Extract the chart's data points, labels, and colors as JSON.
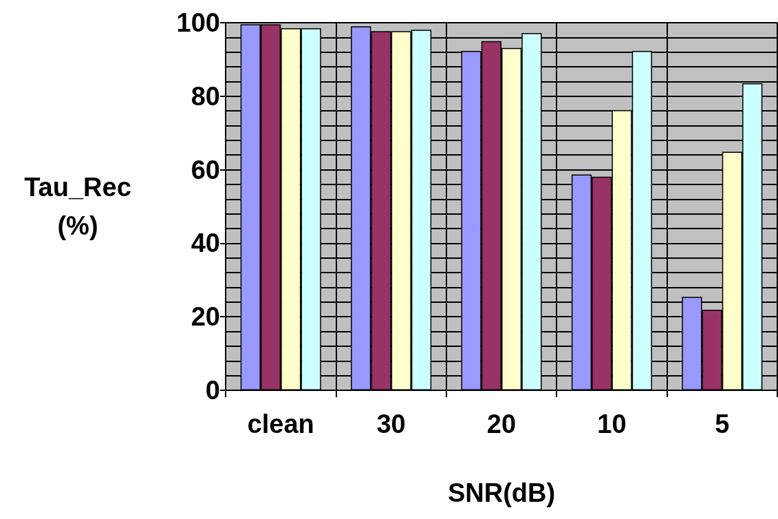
{
  "chart_data": {
    "type": "bar",
    "xlabel": "SNR(dB)",
    "ylabel": "Tau_Rec (%)",
    "categories": [
      "clean",
      "30",
      "20",
      "10",
      "5"
    ],
    "series": [
      {
        "color": "#9999ff",
        "values": [
          99.6,
          99,
          92.3,
          58.7,
          25.4
        ]
      },
      {
        "color": "#993366",
        "values": [
          99.6,
          97.7,
          95,
          58.1,
          21.9
        ]
      },
      {
        "color": "#ffffcc",
        "values": [
          98.5,
          97.7,
          93.1,
          76.2,
          64.9
        ]
      },
      {
        "color": "#ccffff",
        "values": [
          98.5,
          98.1,
          97.2,
          92.3,
          83.5
        ]
      }
    ],
    "ylim": [
      0,
      100
    ],
    "yticks": [
      0,
      20,
      40,
      60,
      80,
      100
    ],
    "grid": true
  }
}
